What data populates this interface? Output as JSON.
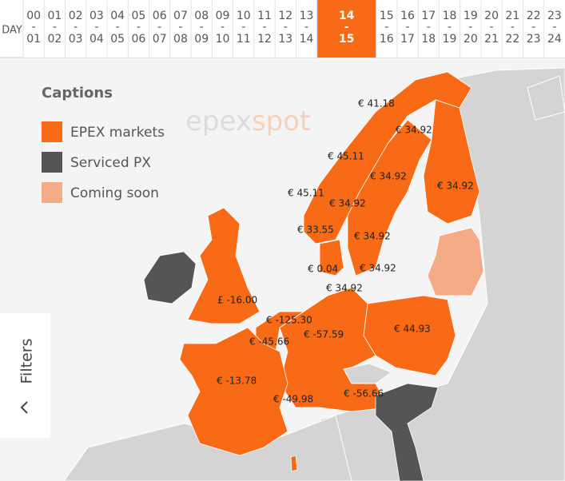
{
  "time_bar": {
    "day_label": "DAY",
    "separator": "-",
    "selected_index": 14,
    "hours": [
      {
        "start": "00",
        "end": "01"
      },
      {
        "start": "01",
        "end": "02"
      },
      {
        "start": "02",
        "end": "03"
      },
      {
        "start": "03",
        "end": "04"
      },
      {
        "start": "04",
        "end": "05"
      },
      {
        "start": "05",
        "end": "06"
      },
      {
        "start": "06",
        "end": "07"
      },
      {
        "start": "07",
        "end": "08"
      },
      {
        "start": "08",
        "end": "09"
      },
      {
        "start": "09",
        "end": "10"
      },
      {
        "start": "10",
        "end": "11"
      },
      {
        "start": "11",
        "end": "12"
      },
      {
        "start": "12",
        "end": "13"
      },
      {
        "start": "13",
        "end": "14"
      },
      {
        "start": "14",
        "end": "15"
      },
      {
        "start": "15",
        "end": "16"
      },
      {
        "start": "16",
        "end": "17"
      },
      {
        "start": "17",
        "end": "18"
      },
      {
        "start": "18",
        "end": "19"
      },
      {
        "start": "19",
        "end": "20"
      },
      {
        "start": "20",
        "end": "21"
      },
      {
        "start": "21",
        "end": "22"
      },
      {
        "start": "22",
        "end": "23"
      },
      {
        "start": "23",
        "end": "24"
      }
    ]
  },
  "legend": {
    "title": "Captions",
    "items": [
      {
        "label": "EPEX markets",
        "color": "#f96a16"
      },
      {
        "label": "Serviced PX",
        "color": "#555555"
      },
      {
        "label": "Coming soon",
        "color": "#f5ab87"
      }
    ]
  },
  "watermark": {
    "first": "epex",
    "second": "spot"
  },
  "filters": {
    "label": "Filters"
  },
  "prices": [
    "€ 41.18",
    "€ 34.92",
    "€ 45.11",
    "€ 34.92",
    "€ 45.11",
    "€ 34.92",
    "€ 34.92",
    "€ 33.55",
    "€ 34.92",
    "€ 34.92",
    "€ 0.04",
    "€ 34.92",
    "£ -16.00",
    "€ -125.30",
    "€ -45.66",
    "€ -57.59",
    "€ 44.93",
    "€ -13.78",
    "€ -49.98",
    "€ -56.66"
  ]
}
